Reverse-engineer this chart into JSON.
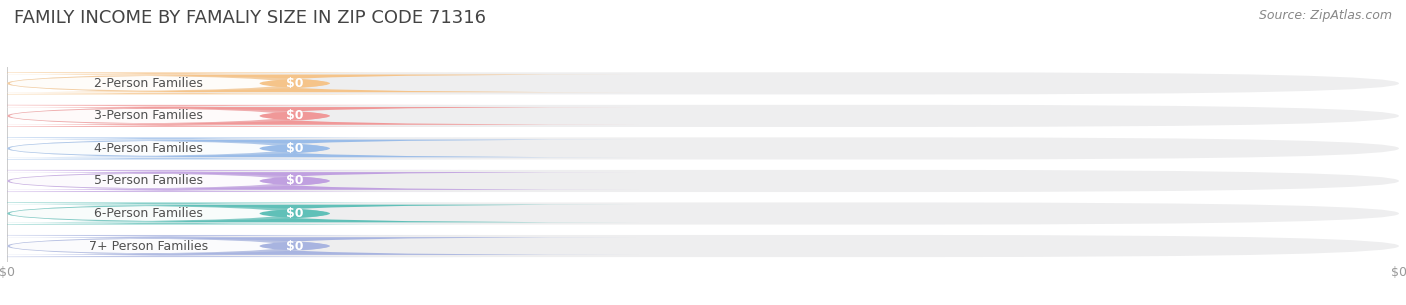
{
  "title": "FAMILY INCOME BY FAMALIY SIZE IN ZIP CODE 71316",
  "source": "Source: ZipAtlas.com",
  "categories": [
    "2-Person Families",
    "3-Person Families",
    "4-Person Families",
    "5-Person Families",
    "6-Person Families",
    "7+ Person Families"
  ],
  "values": [
    0,
    0,
    0,
    0,
    0,
    0
  ],
  "bar_colors": [
    "#F5C48A",
    "#F09898",
    "#9ABCE8",
    "#C0A0E0",
    "#60C0B8",
    "#A8B4E0"
  ],
  "bar_bg_color": "#EEEEEF",
  "value_labels": [
    "$0",
    "$0",
    "$0",
    "$0",
    "$0",
    "$0"
  ],
  "x_tick_labels": [
    "$0",
    "$0"
  ],
  "title_fontsize": 13,
  "source_fontsize": 9,
  "label_fontsize": 9,
  "badge_fontsize": 9,
  "bg_color": "#FFFFFF",
  "title_color": "#444444",
  "label_color": "#505050",
  "source_color": "#888888",
  "tick_color": "#999999",
  "grid_color": "#CCCCCC"
}
